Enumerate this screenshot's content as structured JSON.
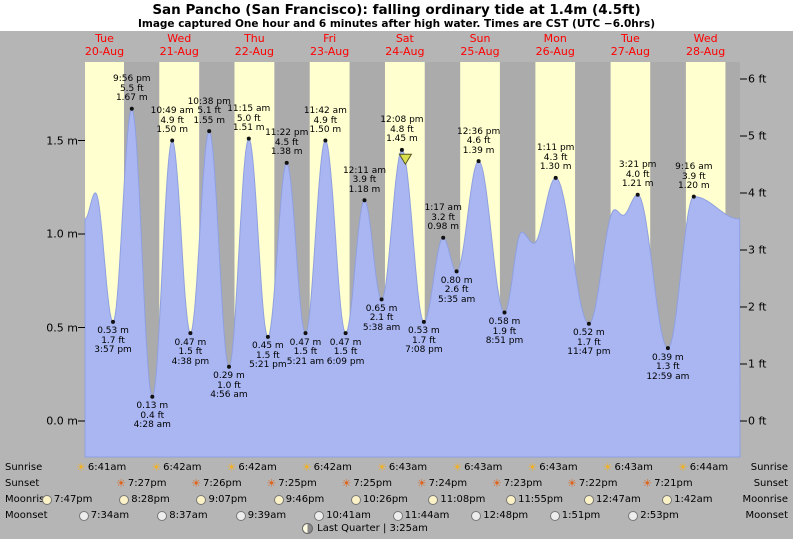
{
  "header": {
    "title": "San Pancho (San Francisco): falling ordinary tide at 1.4m (4.5ft)",
    "subtitle": "Image captured One hour and 6 minutes after high water. Times are CST (UTC −6.0hrs)"
  },
  "colors": {
    "page_bg": "#b5b5b5",
    "header_bg": "#ffffff",
    "day_band": "#ffffcf",
    "night_band": "#ababab",
    "water": "#a9b6f2",
    "water_edge": "#8fa0e0",
    "day_label": "#ff0000",
    "marker": "#d9e04e"
  },
  "chart_data": {
    "type": "area",
    "title": "San Pancho (San Francisco): falling ordinary tide at 1.4m (4.5ft)",
    "unit_left": "m",
    "unit_right": "ft",
    "ylim_m": [
      -0.19,
      1.92
    ],
    "left_ticks": [
      {
        "label": "0.0 m",
        "value": 0
      },
      {
        "label": "0.5 m",
        "value": 0.5
      },
      {
        "label": "1.0 m",
        "value": 1.0
      },
      {
        "label": "1.5 m",
        "value": 1.5
      }
    ],
    "right_ticks": [
      {
        "label": "0 ft",
        "value": 0
      },
      {
        "label": "1 ft",
        "value": 1
      },
      {
        "label": "2 ft",
        "value": 2
      },
      {
        "label": "3 ft",
        "value": 3
      },
      {
        "label": "4 ft",
        "value": 4
      },
      {
        "label": "5 ft",
        "value": 5
      },
      {
        "label": "6 ft",
        "value": 6
      }
    ],
    "days": [
      {
        "weekday": "Tue",
        "date": "20-Aug",
        "sunrise": "6:41am",
        "sunset": "7:27pm",
        "moonrise": "8:28pm",
        "moonset": "7:34am"
      },
      {
        "weekday": "Wed",
        "date": "21-Aug",
        "sunrise": "6:42am",
        "sunset": "7:26pm",
        "moonrise": "9:07pm",
        "moonset": "8:37am"
      },
      {
        "weekday": "Thu",
        "date": "22-Aug",
        "sunrise": "6:42am",
        "sunset": "7:25pm",
        "moonrise": "9:46pm",
        "moonset": "9:39am"
      },
      {
        "weekday": "Fri",
        "date": "23-Aug",
        "sunrise": "6:42am",
        "sunset": "7:25pm",
        "moonrise": "10:26pm",
        "moonset": "10:41am"
      },
      {
        "weekday": "Sat",
        "date": "24-Aug",
        "sunrise": "6:43am",
        "sunset": "7:24pm",
        "moonrise": "11:08pm",
        "moonset": "11:44am"
      },
      {
        "weekday": "Sun",
        "date": "25-Aug",
        "sunrise": "6:43am",
        "sunset": "7:23pm",
        "moonrise": "11:55pm",
        "moonset": "12:48pm"
      },
      {
        "weekday": "Mon",
        "date": "26-Aug",
        "sunrise": "6:43am",
        "sunset": "7:22pm",
        "moonrise": null,
        "moonset": "1:51pm"
      },
      {
        "weekday": "Tue",
        "date": "27-Aug",
        "sunrise": "6:43am",
        "sunset": "7:21pm",
        "moonrise": "12:47am",
        "moonset": "2:53pm"
      },
      {
        "weekday": "Wed",
        "date": "28-Aug",
        "sunrise": "6:44am",
        "sunset": null,
        "moonrise": "1:42am",
        "moonset": null
      }
    ],
    "previous_moonrise": "7:47pm",
    "tides": [
      {
        "day": 0,
        "kind": "low",
        "time": "3:57 pm",
        "height_m": "0.53 m",
        "height_ft": "1.7 ft"
      },
      {
        "day": 0,
        "kind": "high",
        "time": "9:56 pm",
        "height_m": "1.67 m",
        "height_ft": "5.5 ft"
      },
      {
        "day": 1,
        "kind": "low",
        "time": "4:28 am",
        "height_m": "0.13 m",
        "height_ft": "0.4 ft"
      },
      {
        "day": 1,
        "kind": "high",
        "time": "10:49 am",
        "height_m": "1.50 m",
        "height_ft": "4.9 ft"
      },
      {
        "day": 1,
        "kind": "low",
        "time": "4:38 pm",
        "height_m": "0.47 m",
        "height_ft": "1.5 ft"
      },
      {
        "day": 1,
        "kind": "high",
        "time": "10:38 pm",
        "height_m": "1.55 m",
        "height_ft": "5.1 ft"
      },
      {
        "day": 2,
        "kind": "low",
        "time": "4:56 am",
        "height_m": "0.29 m",
        "height_ft": "1.0 ft"
      },
      {
        "day": 2,
        "kind": "high",
        "time": "11:15 am",
        "height_m": "1.51 m",
        "height_ft": "5.0 ft"
      },
      {
        "day": 2,
        "kind": "low",
        "time": "5:21 pm",
        "height_m": "0.45 m",
        "height_ft": "1.5 ft"
      },
      {
        "day": 2,
        "kind": "high",
        "time": "11:22 pm",
        "height_m": "1.38 m",
        "height_ft": "4.5 ft"
      },
      {
        "day": 3,
        "kind": "low",
        "time": "5:21 am",
        "height_m": "0.47 m",
        "height_ft": "1.5 ft"
      },
      {
        "day": 3,
        "kind": "high",
        "time": "11:42 am",
        "height_m": "1.50 m",
        "height_ft": "4.9 ft"
      },
      {
        "day": 3,
        "kind": "low",
        "time": "6:09 pm",
        "height_m": "0.47 m",
        "height_ft": "1.5 ft"
      },
      {
        "day": 4,
        "kind": "high",
        "time": "12:11 am",
        "height_m": "1.18 m",
        "height_ft": "3.9 ft"
      },
      {
        "day": 4,
        "kind": "low",
        "time": "5:38 am",
        "height_m": "0.65 m",
        "height_ft": "2.1 ft"
      },
      {
        "day": 4,
        "kind": "high",
        "time": "12:08 pm",
        "height_m": "1.45 m",
        "height_ft": "4.8 ft",
        "current": true
      },
      {
        "day": 4,
        "kind": "low",
        "time": "7:08 pm",
        "height_m": "0.53 m",
        "height_ft": "1.7 ft"
      },
      {
        "day": 5,
        "kind": "high",
        "time": "1:17 am",
        "height_m": "0.98 m",
        "height_ft": "3.2 ft"
      },
      {
        "day": 5,
        "kind": "low",
        "time": "5:35 am",
        "height_m": "0.80 m",
        "height_ft": "2.6 ft"
      },
      {
        "day": 5,
        "kind": "high",
        "time": "12:36 pm",
        "height_m": "1.39 m",
        "height_ft": "4.6 ft"
      },
      {
        "day": 5,
        "kind": "low",
        "time": "8:51 pm",
        "height_m": "0.58 m",
        "height_ft": "1.9 ft"
      },
      {
        "day": 6,
        "kind": "high",
        "time": "1:11 pm",
        "height_m": "1.30 m",
        "height_ft": "4.3 ft"
      },
      {
        "day": 6,
        "kind": "low",
        "time": "11:47 pm",
        "height_m": "0.52 m",
        "height_ft": "1.7 ft"
      },
      {
        "day": 7,
        "kind": "high",
        "time": "3:21 pm",
        "height_m": "1.21 m",
        "height_ft": "4.0 ft"
      },
      {
        "day": 8,
        "kind": "low",
        "time": "12:59 am",
        "height_m": "0.39 m",
        "height_ft": "1.3 ft"
      },
      {
        "day": 8,
        "kind": "high",
        "time": "9:16 am",
        "height_m": "1.20 m",
        "height_ft": "3.9 ft"
      }
    ],
    "curve_hints": [
      {
        "day": 0,
        "time": "7:00 am",
        "height_m": 1.08
      },
      {
        "day": 0,
        "time": "10:20 am",
        "height_m": 1.22
      },
      {
        "day": 6,
        "time": "2:20 am",
        "height_m": 1.01
      },
      {
        "day": 6,
        "time": "6:10 am",
        "height_m": 0.95
      },
      {
        "day": 7,
        "time": "8:00 am",
        "height_m": 1.13
      },
      {
        "day": 7,
        "time": "10:40 am",
        "height_m": 1.1
      },
      {
        "day": 8,
        "time": "11:55 pm",
        "height_m": 1.08
      }
    ],
    "current_marker": {
      "day": 4,
      "time": "1:14 pm",
      "height_m": 1.4
    }
  },
  "astro": {
    "rows": [
      {
        "key": "sunrise",
        "label": "Sunrise"
      },
      {
        "key": "sunset",
        "label": "Sunset"
      },
      {
        "key": "moonrise",
        "label": "Moonrise"
      },
      {
        "key": "moonset",
        "label": "Moonset"
      }
    ],
    "last_quarter": "Last Quarter | 3:25am"
  }
}
